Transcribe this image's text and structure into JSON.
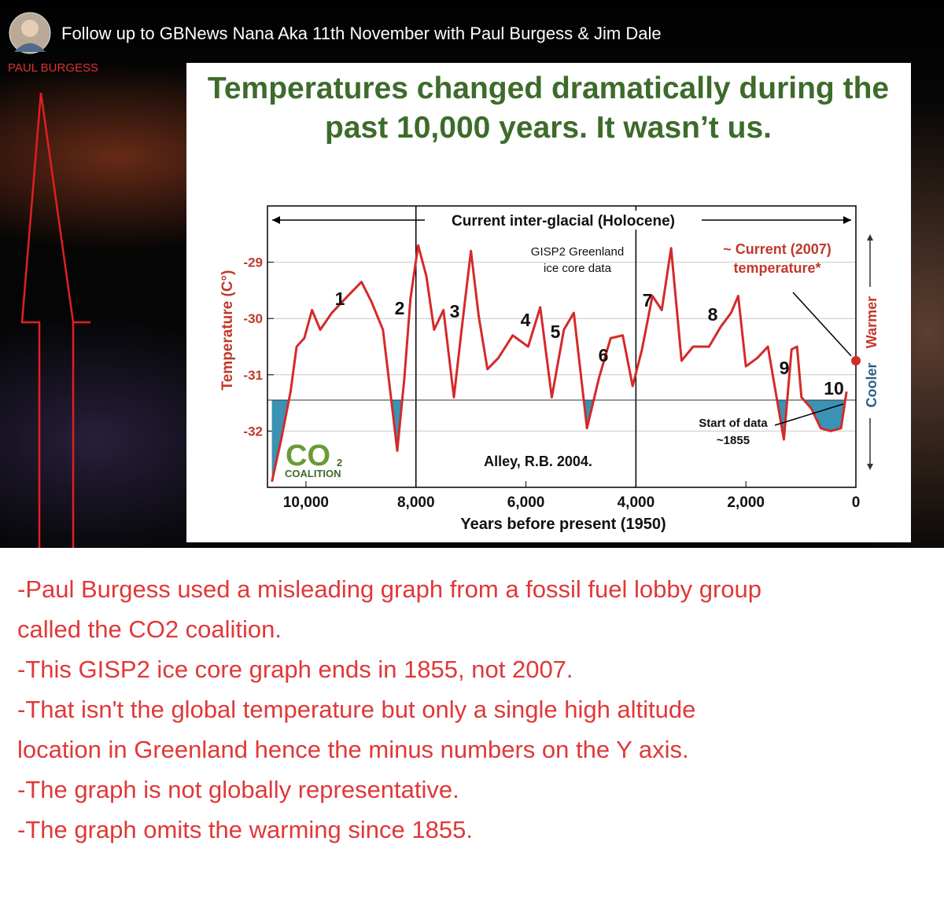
{
  "video": {
    "channel": "PAUL BURGESS",
    "title": "Follow up to GBNews Nana Aka 11th November with Paul Burgess & Jim Dale"
  },
  "slide": {
    "title": "Temperatures changed dramatically during the past 10,000 years. It wasn’t us.",
    "chart": {
      "type": "line",
      "period_label": "Current inter-glacial (Holocene)",
      "source": [
        "GISP2 Greenland",
        "ice core data"
      ],
      "current_label": [
        "~ Current (2007)",
        "temperature*"
      ],
      "start_label": [
        "Start of data",
        "~1855"
      ],
      "citation": "Alley, R.B. 2004.",
      "logo": [
        "CO",
        "2",
        "COALITION"
      ],
      "ylabel": "Temperature (C°)",
      "xlabel": "Years before present (1950)",
      "side_labels": [
        "Cooler",
        "Warmer"
      ],
      "peaks": [
        "1",
        "2",
        "3",
        "4",
        "5",
        "6",
        "7",
        "8",
        "9",
        "10"
      ],
      "x": [
        10620,
        10450,
        10280,
        10170,
        10030,
        9890,
        9740,
        9530,
        9240,
        8990,
        8810,
        8600,
        8430,
        8340,
        8210,
        8100,
        7960,
        7810,
        7670,
        7500,
        7310,
        7170,
        7000,
        6860,
        6700,
        6500,
        6240,
        5960,
        5740,
        5530,
        5310,
        5130,
        4890,
        4670,
        4460,
        4240,
        4060,
        3890,
        3700,
        3530,
        3360,
        3170,
        2960,
        2670,
        2460,
        2270,
        2140,
        2000,
        1790,
        1600,
        1460,
        1310,
        1170,
        1070,
        990,
        810,
        640,
        460,
        270,
        170
      ],
      "values": [
        -32.9,
        -32.15,
        -31.3,
        -30.5,
        -30.35,
        -29.85,
        -30.2,
        -29.9,
        -29.6,
        -29.35,
        -29.7,
        -30.2,
        -31.6,
        -32.35,
        -31.05,
        -29.65,
        -28.7,
        -29.25,
        -30.2,
        -29.85,
        -31.4,
        -30.2,
        -28.8,
        -29.95,
        -30.9,
        -30.7,
        -30.3,
        -30.5,
        -29.8,
        -31.4,
        -30.2,
        -29.9,
        -31.95,
        -31.05,
        -30.35,
        -30.3,
        -31.2,
        -30.55,
        -29.6,
        -29.85,
        -28.75,
        -30.75,
        -30.5,
        -30.5,
        -30.15,
        -29.9,
        -29.6,
        -30.85,
        -30.7,
        -30.5,
        -31.3,
        -32.15,
        -30.55,
        -30.5,
        -31.4,
        -31.6,
        -31.95,
        -32.0,
        -31.95,
        -31.3
      ],
      "color": "#d42a2a",
      "xlim": [
        10700,
        0
      ],
      "ylim": [
        -33,
        -28
      ],
      "xticks": [
        {
          "value": 10000,
          "label": "10,000"
        },
        {
          "value": 8000,
          "label": "8,000"
        },
        {
          "value": 6000,
          "label": "6,000"
        },
        {
          "value": 4000,
          "label": "4,000"
        },
        {
          "value": 2000,
          "label": "2,000"
        },
        0
      ],
      "yticks": [
        -29,
        -30,
        -31,
        -32
      ],
      "divisions": [
        8000,
        4000
      ],
      "threshold": -31.45,
      "current": {
        "x": 0,
        "y": -30.75
      }
    }
  },
  "notes": [
    "-Paul Burgess used a misleading graph from a fossil fuel lobby group",
    "called the CO2 coalition.",
    "-This GISP2 ice core graph ends in 1855, not 2007.",
    "-That isn't the global temperature but only a single high altitude",
    "location in Greenland hence the minus numbers on the Y axis.",
    "-The graph is not globally representative.",
    "-The graph omits the warming since 1855."
  ]
}
